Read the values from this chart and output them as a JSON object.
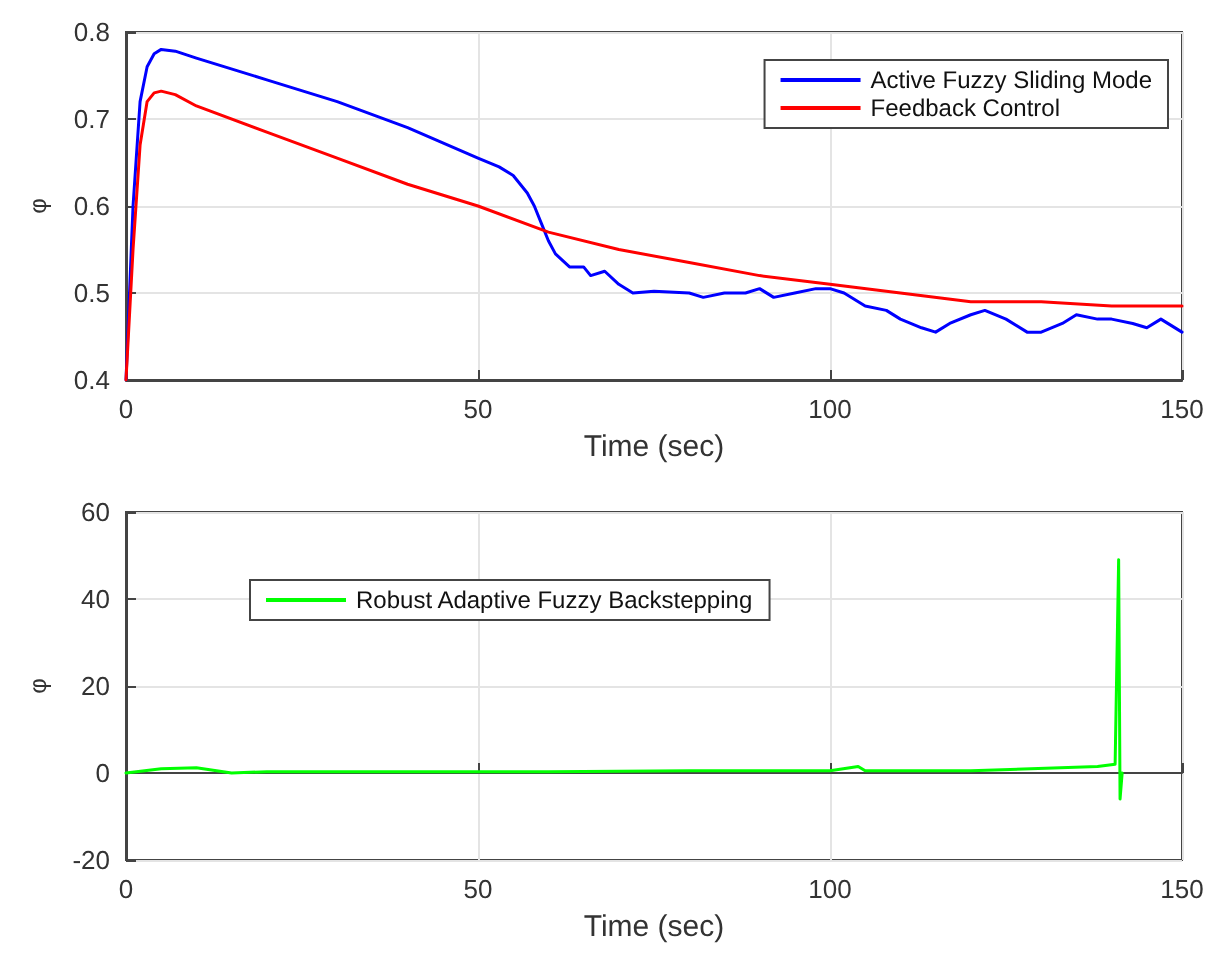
{
  "chart_data": [
    {
      "type": "line",
      "xlabel": "Time (sec)",
      "ylabel": "φ",
      "xlim": [
        0,
        150
      ],
      "xticks": [
        0,
        50,
        100,
        150
      ],
      "ylim": [
        0.4,
        0.8
      ],
      "yticks": [
        0.4,
        0.5,
        0.6,
        0.7,
        0.8
      ],
      "grid": true,
      "legend": "top right",
      "marker": "none",
      "line_style": "solid",
      "series": [
        {
          "name": "Active Fuzzy Sliding Mode",
          "color": "#0000ff",
          "x": [
            0,
            1,
            2,
            3,
            4,
            5,
            7,
            10,
            20,
            30,
            40,
            50,
            53,
            55,
            57,
            58,
            59,
            60,
            61,
            63,
            65,
            66,
            68,
            70,
            72,
            75,
            80,
            82,
            85,
            88,
            90,
            92,
            95,
            98,
            100,
            102,
            105,
            108,
            110,
            113,
            115,
            117,
            120,
            122,
            125,
            128,
            130,
            133,
            135,
            138,
            140,
            143,
            145,
            147,
            150
          ],
          "values": [
            0.4,
            0.6,
            0.72,
            0.76,
            0.775,
            0.78,
            0.778,
            0.77,
            0.745,
            0.72,
            0.69,
            0.655,
            0.645,
            0.635,
            0.615,
            0.6,
            0.58,
            0.56,
            0.545,
            0.53,
            0.53,
            0.52,
            0.525,
            0.51,
            0.5,
            0.502,
            0.5,
            0.495,
            0.5,
            0.5,
            0.505,
            0.495,
            0.5,
            0.505,
            0.505,
            0.5,
            0.485,
            0.48,
            0.47,
            0.46,
            0.455,
            0.465,
            0.475,
            0.48,
            0.47,
            0.455,
            0.455,
            0.465,
            0.475,
            0.47,
            0.47,
            0.465,
            0.46,
            0.47,
            0.455
          ]
        },
        {
          "name": "Feedback Control",
          "color": "#ff0000",
          "x": [
            0,
            1,
            2,
            3,
            4,
            5,
            7,
            10,
            20,
            30,
            40,
            50,
            60,
            70,
            80,
            90,
            100,
            110,
            120,
            130,
            140,
            150
          ],
          "values": [
            0.4,
            0.55,
            0.67,
            0.72,
            0.73,
            0.732,
            0.728,
            0.715,
            0.685,
            0.655,
            0.625,
            0.6,
            0.57,
            0.55,
            0.535,
            0.52,
            0.51,
            0.5,
            0.49,
            0.49,
            0.485,
            0.485
          ]
        }
      ]
    },
    {
      "type": "line",
      "xlabel": "Time (sec)",
      "ylabel": "φ",
      "xlim": [
        0,
        150
      ],
      "xticks": [
        0,
        50,
        100,
        150
      ],
      "ylim": [
        -20,
        60
      ],
      "yticks": [
        -20,
        0,
        20,
        40,
        60
      ],
      "grid": true,
      "legend": "top left",
      "marker": "none",
      "line_style": "solid",
      "series": [
        {
          "name": "Robust Adaptive Fuzzy Backstepping",
          "color": "#00ff00",
          "x": [
            0,
            5,
            10,
            15,
            20,
            40,
            60,
            80,
            100,
            104,
            105,
            120,
            138,
            140.5,
            141,
            141.2,
            141.5
          ],
          "values": [
            0,
            1,
            1.2,
            0,
            0.3,
            0.3,
            0.3,
            0.5,
            0.5,
            1.5,
            0.5,
            0.5,
            1.5,
            2,
            49,
            -6,
            0
          ]
        }
      ]
    }
  ]
}
